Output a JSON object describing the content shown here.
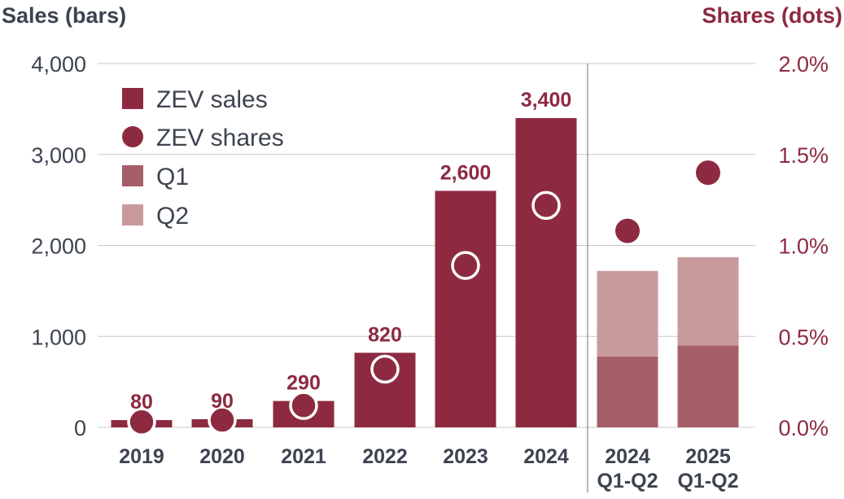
{
  "chart_data": {
    "type": "bar",
    "left_axis_title": "Sales (bars)",
    "right_axis_title": "Shares (dots)",
    "left_ticks": [
      "4,000",
      "3,000",
      "2,000",
      "1,000",
      "0"
    ],
    "left_tick_values": [
      4000,
      3000,
      2000,
      1000,
      0
    ],
    "right_ticks": [
      "2.0%",
      "1.5%",
      "1.0%",
      "0.5%",
      "0.0%"
    ],
    "right_tick_values": [
      2.0,
      1.5,
      1.0,
      0.5,
      0.0
    ],
    "ylim_left": [
      0,
      4000
    ],
    "ylim_right": [
      0,
      2.0
    ],
    "annual": {
      "categories": [
        "2019",
        "2020",
        "2021",
        "2022",
        "2023",
        "2024"
      ],
      "sales": [
        80,
        90,
        290,
        820,
        2600,
        3400
      ],
      "sales_labels": [
        "80",
        "90",
        "290",
        "820",
        "2,600",
        "3,400"
      ],
      "shares_pct": [
        0.03,
        0.04,
        0.12,
        0.32,
        0.89,
        1.22
      ]
    },
    "half_year": {
      "categories": [
        [
          "2024",
          "Q1-Q2"
        ],
        [
          "2025",
          "Q1-Q2"
        ]
      ],
      "q1": [
        780,
        900
      ],
      "q2": [
        940,
        970
      ],
      "shares_pct": [
        1.08,
        1.4
      ]
    },
    "legend": [
      {
        "label": "ZEV sales",
        "shape": "square",
        "color": "#8d2a41"
      },
      {
        "label": "ZEV shares",
        "shape": "circle",
        "color": "#8d2a41"
      },
      {
        "label": "Q1",
        "shape": "square",
        "color": "#a46066"
      },
      {
        "label": "Q2",
        "shape": "square",
        "color": "#c99a9c"
      }
    ],
    "colors": {
      "bar": "#8d2a41",
      "q1": "#a46066",
      "q2": "#c99a9c",
      "dot": "#8d2a41",
      "left_axis_text": "#3d4450",
      "right_axis_text": "#8d2a41",
      "grid": "#c8c8c8"
    }
  }
}
